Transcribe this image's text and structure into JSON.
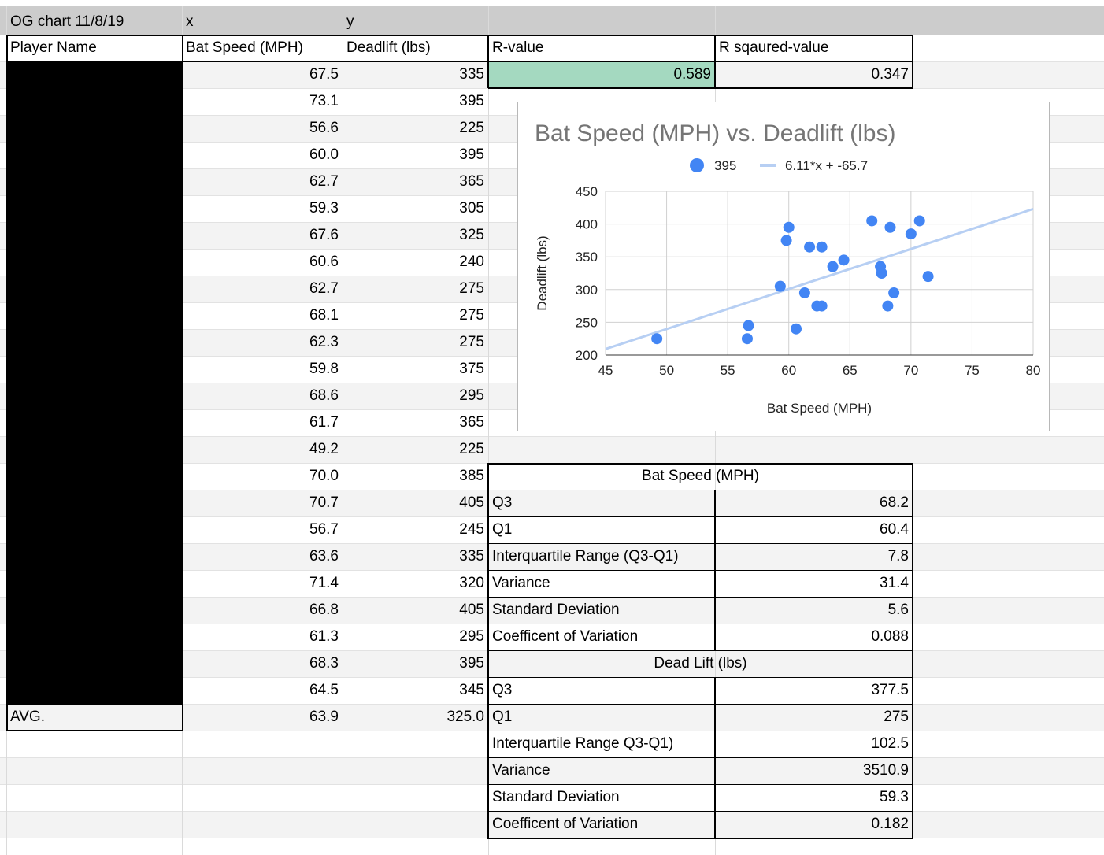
{
  "sheet": {
    "header_row": {
      "a": "OG chart 11/8/19",
      "b": "x",
      "c": "y"
    },
    "column_headers": {
      "player": "Player Name",
      "bat": "Bat Speed (MPH)",
      "dead": "Deadlift (lbs)",
      "r": "R-value",
      "r2": "R sqaured-value"
    },
    "rows": [
      {
        "bat": "67.5",
        "dead": "335"
      },
      {
        "bat": "73.1",
        "dead": "395"
      },
      {
        "bat": "56.6",
        "dead": "225"
      },
      {
        "bat": "60.0",
        "dead": "395"
      },
      {
        "bat": "62.7",
        "dead": "365"
      },
      {
        "bat": "59.3",
        "dead": "305"
      },
      {
        "bat": "67.6",
        "dead": "325"
      },
      {
        "bat": "60.6",
        "dead": "240"
      },
      {
        "bat": "62.7",
        "dead": "275"
      },
      {
        "bat": "68.1",
        "dead": "275"
      },
      {
        "bat": "62.3",
        "dead": "275"
      },
      {
        "bat": "59.8",
        "dead": "375"
      },
      {
        "bat": "68.6",
        "dead": "295"
      },
      {
        "bat": "61.7",
        "dead": "365"
      },
      {
        "bat": "49.2",
        "dead": "225"
      },
      {
        "bat": "70.0",
        "dead": "385"
      },
      {
        "bat": "70.7",
        "dead": "405"
      },
      {
        "bat": "56.7",
        "dead": "245"
      },
      {
        "bat": "63.6",
        "dead": "335"
      },
      {
        "bat": "71.4",
        "dead": "320"
      },
      {
        "bat": "66.8",
        "dead": "405"
      },
      {
        "bat": "61.3",
        "dead": "295"
      },
      {
        "bat": "68.3",
        "dead": "395"
      },
      {
        "bat": "64.5",
        "dead": "345"
      }
    ],
    "avg": {
      "label": "AVG.",
      "bat": "63.9",
      "dead": "325.0"
    },
    "r_value": "0.589",
    "r2_value": "0.347",
    "stats_bat": {
      "title": "Bat Speed (MPH)",
      "rows": [
        {
          "label": "Q3",
          "value": "68.2"
        },
        {
          "label": "Q1",
          "value": "60.4"
        },
        {
          "label": "Interquartile Range (Q3-Q1)",
          "value": "7.8"
        },
        {
          "label": "Variance",
          "value": "31.4"
        },
        {
          "label": "Standard Deviation",
          "value": "5.6"
        },
        {
          "label": "Coefficent of Variation",
          "value": "0.088"
        }
      ]
    },
    "stats_dead": {
      "title": "Dead Lift (lbs)",
      "rows": [
        {
          "label": "Q3",
          "value": "377.5"
        },
        {
          "label": "Q1",
          "value": "275"
        },
        {
          "label": "Interquartile Range Q3-Q1)",
          "value": "102.5"
        },
        {
          "label": "Variance",
          "value": "3510.9"
        },
        {
          "label": "Standard Deviation",
          "value": "59.3"
        },
        {
          "label": "Coefficent of Variation",
          "value": "0.182"
        }
      ]
    },
    "colors": {
      "header_gray": "#cccccc",
      "highlight_green": "#a4d9c0",
      "band_gray": "#f3f3f3",
      "redacted": "#000000"
    }
  },
  "chart_data": {
    "type": "scatter",
    "title": "Bat Speed (MPH) vs. Deadlift (lbs)",
    "xlabel": "Bat Speed (MPH)",
    "ylabel": "Deadlift (lbs)",
    "xlim": [
      45,
      80
    ],
    "ylim": [
      200,
      450
    ],
    "xticks": [
      45,
      50,
      55,
      60,
      65,
      70,
      75,
      80
    ],
    "yticks": [
      200,
      250,
      300,
      350,
      400,
      450
    ],
    "grid": true,
    "legend_position": "top",
    "series": [
      {
        "name": "395",
        "color": "#4285f4",
        "x": [
          67.5,
          56.6,
          60.0,
          62.7,
          59.3,
          67.6,
          60.6,
          62.7,
          68.1,
          62.3,
          59.8,
          68.6,
          61.7,
          49.2,
          70.0,
          70.7,
          56.7,
          63.6,
          71.4,
          66.8,
          61.3,
          68.3,
          64.5
        ],
        "y": [
          335,
          225,
          395,
          365,
          305,
          325,
          240,
          275,
          275,
          275,
          375,
          295,
          365,
          225,
          385,
          405,
          245,
          335,
          320,
          405,
          295,
          395,
          345
        ]
      }
    ],
    "trendline": {
      "label": "6.11*x + -65.7",
      "slope": 6.11,
      "intercept": -65.7,
      "color": "#b7cff3"
    }
  }
}
